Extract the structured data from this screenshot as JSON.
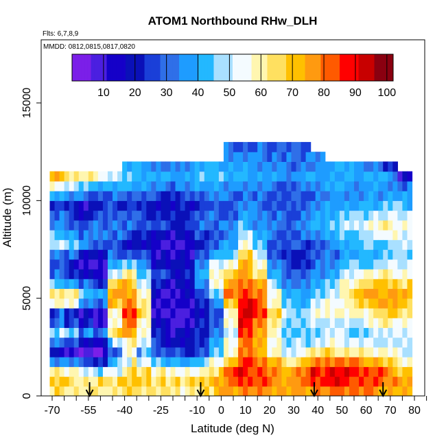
{
  "chart_data": {
    "type": "heatmap",
    "title": "ATOM1 Northbound RHw_DLH",
    "subtitle_flights": "Flts: 6,7,8,9",
    "subtitle_dates": "MMDD: 0812,0815,0817,0820",
    "xlabel": "Latitude (deg N)",
    "ylabel": "Altitude (m)",
    "xlim": [
      -70,
      85
    ],
    "ylim": [
      0,
      17500
    ],
    "x_ticks": [
      -70,
      -65,
      -60,
      -55,
      -50,
      -45,
      -40,
      -35,
      -30,
      -25,
      -20,
      -15,
      -10,
      -5,
      0,
      5,
      10,
      15,
      20,
      25,
      30,
      35,
      40,
      45,
      50,
      55,
      60,
      65,
      70,
      75,
      80,
      85
    ],
    "x_tick_labels": [
      "-70",
      "-55",
      "-40",
      "-25",
      "-10",
      "0",
      "10",
      "20",
      "30",
      "40",
      "50",
      "60",
      "70",
      "80"
    ],
    "x_tick_label_values": [
      -70,
      -55,
      -40,
      -25,
      -10,
      0,
      10,
      20,
      30,
      40,
      50,
      60,
      70,
      80
    ],
    "y_ticks": [
      0,
      5000,
      10000,
      15000
    ],
    "y_tick_labels": [
      "0",
      "5000",
      "10000",
      "15000"
    ],
    "colorbar": {
      "range": [
        0,
        102
      ],
      "ticks": [
        10,
        20,
        30,
        40,
        50,
        60,
        70,
        80,
        90,
        100
      ],
      "tick_labels": [
        "10",
        "20",
        "30",
        "40",
        "50",
        "60",
        "70",
        "80",
        "90",
        "100"
      ],
      "colors": [
        "#7b1fe8",
        "#4b1fe0",
        "#1500c8",
        "#0a10b8",
        "#1a3fd8",
        "#2f6fe8",
        "#1e9cff",
        "#23b8ff",
        "#a9e0ff",
        "#f4fbff",
        "#fff6b0",
        "#ffe060",
        "#ffc000",
        "#ff9a10",
        "#ff5a00",
        "#ff0000",
        "#c80000",
        "#8a0010"
      ]
    },
    "profile_latitudes": [
      -54.5,
      -8.5,
      38.5,
      67.0
    ],
    "altitude_bin_m": 500,
    "lat_bin_deg": 2,
    "rh_grid_note": "relative humidity (%) on lat x altitude grid, approx.",
    "rh_columns": [
      {
        "lat": -68,
        "top": 11500,
        "rh": [
          72,
          75,
          70,
          45,
          25,
          40,
          55,
          35,
          30,
          60,
          65,
          45,
          30,
          25,
          35,
          50,
          45,
          35,
          30,
          25,
          40,
          55,
          70
        ]
      },
      {
        "lat": -62,
        "top": 11500,
        "rh": [
          70,
          72,
          65,
          40,
          20,
          35,
          50,
          30,
          25,
          55,
          60,
          40,
          25,
          20,
          30,
          45,
          40,
          30,
          25,
          20,
          35,
          50,
          65
        ]
      },
      {
        "lat": -56,
        "top": 11500,
        "rh": [
          68,
          70,
          60,
          35,
          15,
          25,
          40,
          20,
          15,
          35,
          45,
          30,
          15,
          10,
          20,
          35,
          30,
          25,
          20,
          15,
          30,
          45,
          60
        ]
      },
      {
        "lat": -50,
        "top": 11500,
        "rh": [
          70,
          72,
          55,
          30,
          12,
          20,
          35,
          15,
          10,
          30,
          40,
          25,
          12,
          8,
          15,
          30,
          35,
          30,
          25,
          20,
          30,
          40,
          55
        ]
      },
      {
        "lat": -44,
        "top": 11500,
        "rh": [
          72,
          74,
          60,
          45,
          35,
          50,
          65,
          55,
          60,
          70,
          75,
          65,
          50,
          40,
          30,
          25,
          30,
          35,
          30,
          25,
          30,
          40,
          50
        ]
      },
      {
        "lat": -38,
        "top": 12000,
        "rh": [
          74,
          76,
          70,
          60,
          55,
          65,
          75,
          80,
          85,
          80,
          75,
          70,
          60,
          45,
          30,
          20,
          25,
          30,
          28,
          25,
          30,
          40,
          45,
          40
        ]
      },
      {
        "lat": -32,
        "top": 12000,
        "rh": [
          72,
          75,
          68,
          55,
          45,
          50,
          55,
          60,
          65,
          60,
          55,
          50,
          45,
          35,
          25,
          18,
          22,
          28,
          25,
          22,
          28,
          38,
          42,
          38
        ]
      },
      {
        "lat": -26,
        "top": 12000,
        "rh": [
          70,
          72,
          62,
          45,
          30,
          25,
          20,
          15,
          10,
          12,
          15,
          20,
          25,
          20,
          15,
          12,
          18,
          25,
          22,
          20,
          25,
          35,
          40,
          35
        ]
      },
      {
        "lat": -20,
        "top": 12000,
        "rh": [
          68,
          70,
          58,
          40,
          25,
          20,
          15,
          10,
          8,
          10,
          12,
          15,
          20,
          18,
          12,
          10,
          15,
          22,
          20,
          18,
          22,
          32,
          38,
          32
        ]
      },
      {
        "lat": -14,
        "top": 12000,
        "rh": [
          66,
          68,
          55,
          38,
          22,
          18,
          15,
          12,
          10,
          12,
          15,
          18,
          22,
          20,
          15,
          12,
          18,
          25,
          22,
          20,
          25,
          35,
          40,
          35
        ]
      },
      {
        "lat": -8,
        "top": 12000,
        "rh": [
          68,
          70,
          58,
          42,
          28,
          25,
          22,
          20,
          18,
          22,
          28,
          35,
          40,
          35,
          28,
          22,
          25,
          30,
          28,
          25,
          30,
          38,
          42,
          38
        ]
      },
      {
        "lat": -2,
        "top": 12000,
        "rh": [
          70,
          74,
          66,
          55,
          45,
          40,
          35,
          30,
          28,
          35,
          45,
          55,
          60,
          52,
          40,
          30,
          30,
          32,
          30,
          28,
          32,
          40,
          45,
          40
        ]
      },
      {
        "lat": 4,
        "top": 13000,
        "rh": [
          75,
          80,
          82,
          70,
          60,
          55,
          50,
          55,
          60,
          70,
          80,
          75,
          65,
          55,
          45,
          38,
          35,
          32,
          30,
          28,
          30,
          35,
          40,
          38,
          35,
          30
        ]
      },
      {
        "lat": 10,
        "top": 13000,
        "rh": [
          78,
          85,
          88,
          85,
          80,
          82,
          85,
          90,
          92,
          88,
          85,
          80,
          75,
          70,
          65,
          58,
          50,
          42,
          38,
          35,
          32,
          35,
          40,
          38,
          35,
          30
        ]
      },
      {
        "lat": 16,
        "top": 13000,
        "rh": [
          76,
          82,
          85,
          80,
          72,
          70,
          75,
          80,
          85,
          82,
          78,
          72,
          65,
          58,
          50,
          45,
          40,
          36,
          34,
          32,
          30,
          34,
          38,
          36,
          34,
          30
        ]
      },
      {
        "lat": 22,
        "top": 13000,
        "rh": [
          74,
          78,
          78,
          70,
          60,
          55,
          58,
          62,
          65,
          60,
          55,
          48,
          40,
          35,
          30,
          28,
          30,
          32,
          30,
          28,
          28,
          32,
          36,
          34,
          32,
          28
        ]
      },
      {
        "lat": 28,
        "top": 13000,
        "rh": [
          72,
          76,
          72,
          62,
          50,
          45,
          45,
          48,
          50,
          45,
          40,
          35,
          30,
          25,
          22,
          25,
          28,
          30,
          28,
          26,
          26,
          30,
          34,
          32,
          30,
          28
        ]
      },
      {
        "lat": 34,
        "top": 13000,
        "rh": [
          74,
          80,
          80,
          70,
          55,
          48,
          45,
          45,
          48,
          42,
          38,
          32,
          28,
          24,
          22,
          25,
          30,
          34,
          32,
          30,
          28,
          32,
          36,
          34,
          32,
          28
        ]
      },
      {
        "lat": 40,
        "top": 12500,
        "rh": [
          78,
          85,
          88,
          78,
          62,
          52,
          48,
          50,
          55,
          50,
          45,
          40,
          35,
          30,
          28,
          30,
          35,
          40,
          38,
          35,
          32,
          35,
          38,
          35,
          32
        ]
      },
      {
        "lat": 46,
        "top": 12000,
        "rh": [
          80,
          88,
          90,
          80,
          65,
          55,
          50,
          52,
          58,
          55,
          50,
          45,
          40,
          35,
          32,
          35,
          40,
          45,
          42,
          38,
          35,
          38,
          40,
          38
        ]
      },
      {
        "lat": 52,
        "top": 12000,
        "rh": [
          80,
          86,
          88,
          78,
          62,
          52,
          48,
          50,
          56,
          60,
          62,
          58,
          50,
          42,
          38,
          40,
          45,
          50,
          45,
          40,
          35,
          38,
          40,
          38
        ]
      },
      {
        "lat": 58,
        "top": 12000,
        "rh": [
          78,
          84,
          86,
          76,
          60,
          50,
          46,
          50,
          58,
          65,
          70,
          65,
          55,
          45,
          40,
          42,
          48,
          52,
          46,
          40,
          35,
          36,
          38,
          35
        ]
      },
      {
        "lat": 64,
        "top": 12000,
        "rh": [
          76,
          82,
          82,
          72,
          58,
          50,
          48,
          55,
          65,
          72,
          75,
          68,
          58,
          48,
          42,
          45,
          52,
          58,
          50,
          42,
          36,
          36,
          38,
          35
        ]
      },
      {
        "lat": 70,
        "top": 12000,
        "rh": [
          74,
          78,
          76,
          66,
          55,
          50,
          52,
          60,
          68,
          74,
          76,
          70,
          60,
          52,
          46,
          48,
          55,
          60,
          52,
          44,
          38,
          36,
          36,
          20
        ]
      },
      {
        "lat": 76,
        "top": 11500,
        "rh": [
          70,
          74,
          70,
          60,
          50,
          48,
          52,
          58,
          64,
          68,
          70,
          64,
          56,
          50,
          46,
          48,
          52,
          56,
          50,
          42,
          36,
          30,
          15
        ]
      }
    ]
  }
}
